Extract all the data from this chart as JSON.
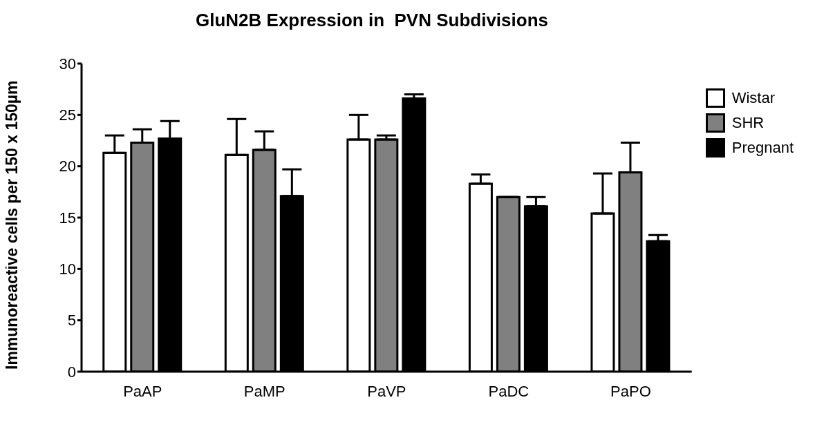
{
  "chart_data": {
    "type": "bar",
    "title": "GluN2B Expression in  PVN Subdivisions",
    "ylabel": "Immunoreactive cells per 150 x 150µm",
    "categories": [
      "PaAP",
      "PaMP",
      "PaVP",
      "PaDC",
      "PaPO"
    ],
    "series": [
      {
        "name": "Wistar",
        "color": "#ffffff",
        "values": [
          21.3,
          21.1,
          22.6,
          18.3,
          15.4
        ],
        "errors": [
          [
            21.3,
            23.0
          ],
          [
            21.1,
            24.6
          ],
          [
            22.6,
            25.0
          ],
          [
            18.3,
            19.2
          ],
          [
            15.4,
            19.3
          ]
        ]
      },
      {
        "name": "SHR",
        "color": "#808080",
        "values": [
          22.3,
          21.6,
          22.6,
          17.0,
          19.4
        ],
        "errors": [
          [
            22.3,
            23.6
          ],
          [
            21.6,
            23.4
          ],
          [
            22.6,
            23.0
          ],
          null,
          [
            19.4,
            22.3
          ]
        ]
      },
      {
        "name": "Pregnant",
        "color": "#000000",
        "values": [
          22.7,
          17.1,
          26.6,
          16.1,
          12.7
        ],
        "errors": [
          [
            22.7,
            24.4
          ],
          [
            17.1,
            19.7
          ],
          [
            26.6,
            27.0
          ],
          [
            16.1,
            17.0
          ],
          [
            12.7,
            13.3
          ]
        ]
      }
    ],
    "ylim": [
      0,
      30
    ],
    "yticks": [
      0,
      5,
      10,
      15,
      20,
      25,
      30
    ],
    "grid": false,
    "legend": "right"
  }
}
